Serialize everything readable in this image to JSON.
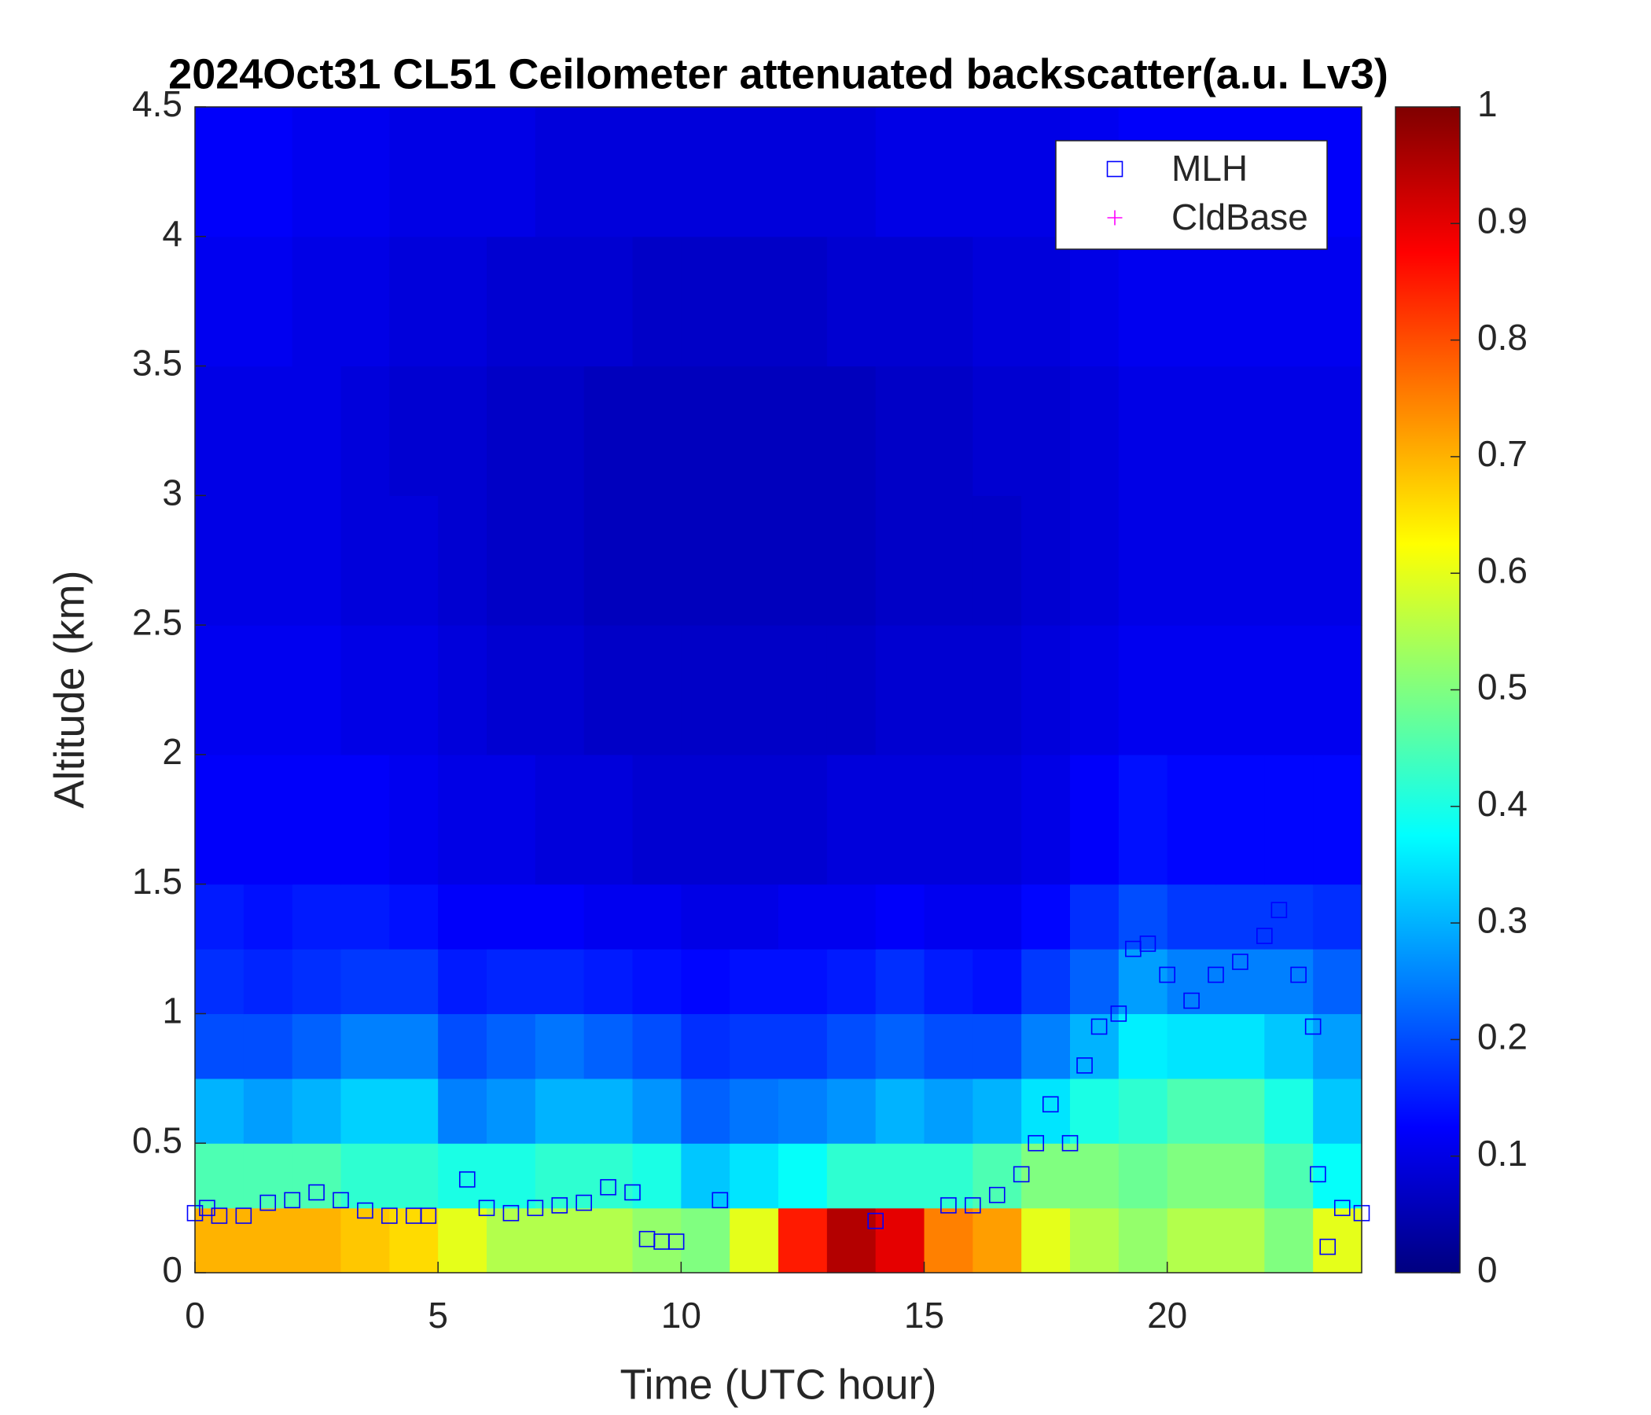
{
  "chart_data": {
    "type": "heatmap",
    "title": "2024Oct31 CL51 Ceilometer attenuated backscatter(a.u. Lv3)",
    "xlabel": "Time (UTC hour)",
    "ylabel": "Altitude (km)",
    "xlim": [
      0,
      24
    ],
    "xticks": [
      0,
      5,
      10,
      15,
      20
    ],
    "ylim": [
      0,
      4.5
    ],
    "yticks": [
      0,
      0.5,
      1,
      1.5,
      2,
      2.5,
      3,
      3.5,
      4,
      4.5
    ],
    "colormap": "jet",
    "clim": [
      0,
      1
    ],
    "cticks": [
      0,
      0.1,
      0.2,
      0.3,
      0.4,
      0.5,
      0.6,
      0.7,
      0.8,
      0.9,
      1
    ],
    "x_edges": [
      0,
      1,
      2,
      3,
      4,
      5,
      6,
      7,
      8,
      9,
      10,
      11,
      12,
      13,
      14,
      15,
      16,
      17,
      18,
      19,
      20,
      21,
      22,
      23,
      24
    ],
    "y_edges": [
      0,
      0.25,
      0.5,
      0.75,
      1,
      1.25,
      1.5,
      2,
      2.5,
      3,
      3.5,
      4,
      4.5
    ],
    "z": [
      [
        0.7,
        0.7,
        0.7,
        0.68,
        0.66,
        0.6,
        0.55,
        0.55,
        0.55,
        0.52,
        0.5,
        0.6,
        0.85,
        0.95,
        0.9,
        0.75,
        0.72,
        0.6,
        0.55,
        0.52,
        0.55,
        0.55,
        0.5,
        0.6
      ],
      [
        0.45,
        0.45,
        0.45,
        0.42,
        0.42,
        0.4,
        0.4,
        0.42,
        0.42,
        0.4,
        0.32,
        0.35,
        0.38,
        0.42,
        0.42,
        0.42,
        0.45,
        0.5,
        0.5,
        0.48,
        0.5,
        0.5,
        0.45,
        0.38
      ],
      [
        0.3,
        0.28,
        0.3,
        0.33,
        0.33,
        0.25,
        0.27,
        0.3,
        0.3,
        0.27,
        0.22,
        0.24,
        0.25,
        0.27,
        0.3,
        0.28,
        0.3,
        0.35,
        0.4,
        0.42,
        0.45,
        0.45,
        0.4,
        0.32
      ],
      [
        0.2,
        0.2,
        0.22,
        0.25,
        0.25,
        0.2,
        0.22,
        0.24,
        0.22,
        0.2,
        0.17,
        0.18,
        0.18,
        0.2,
        0.22,
        0.2,
        0.2,
        0.25,
        0.3,
        0.36,
        0.35,
        0.35,
        0.32,
        0.28
      ],
      [
        0.17,
        0.16,
        0.17,
        0.18,
        0.18,
        0.15,
        0.16,
        0.16,
        0.15,
        0.14,
        0.13,
        0.14,
        0.14,
        0.15,
        0.17,
        0.15,
        0.14,
        0.18,
        0.22,
        0.28,
        0.25,
        0.25,
        0.25,
        0.22
      ],
      [
        0.15,
        0.14,
        0.15,
        0.15,
        0.14,
        0.12,
        0.12,
        0.12,
        0.11,
        0.11,
        0.1,
        0.1,
        0.11,
        0.11,
        0.12,
        0.11,
        0.11,
        0.13,
        0.17,
        0.2,
        0.18,
        0.18,
        0.18,
        0.17
      ],
      [
        0.12,
        0.12,
        0.12,
        0.12,
        0.11,
        0.1,
        0.1,
        0.09,
        0.09,
        0.08,
        0.08,
        0.08,
        0.08,
        0.09,
        0.09,
        0.09,
        0.09,
        0.1,
        0.12,
        0.14,
        0.13,
        0.13,
        0.13,
        0.13
      ],
      [
        0.11,
        0.11,
        0.11,
        0.1,
        0.1,
        0.09,
        0.08,
        0.08,
        0.07,
        0.07,
        0.07,
        0.07,
        0.07,
        0.07,
        0.08,
        0.08,
        0.08,
        0.09,
        0.1,
        0.11,
        0.11,
        0.11,
        0.11,
        0.11
      ],
      [
        0.1,
        0.1,
        0.1,
        0.09,
        0.09,
        0.08,
        0.07,
        0.07,
        0.06,
        0.06,
        0.06,
        0.06,
        0.06,
        0.06,
        0.07,
        0.07,
        0.07,
        0.08,
        0.09,
        0.1,
        0.1,
        0.1,
        0.1,
        0.1
      ],
      [
        0.1,
        0.1,
        0.1,
        0.09,
        0.08,
        0.08,
        0.07,
        0.07,
        0.06,
        0.06,
        0.06,
        0.06,
        0.06,
        0.06,
        0.07,
        0.07,
        0.08,
        0.08,
        0.09,
        0.1,
        0.1,
        0.1,
        0.1,
        0.1
      ],
      [
        0.11,
        0.11,
        0.1,
        0.1,
        0.09,
        0.09,
        0.08,
        0.08,
        0.08,
        0.07,
        0.07,
        0.07,
        0.07,
        0.08,
        0.08,
        0.08,
        0.09,
        0.09,
        0.1,
        0.11,
        0.11,
        0.11,
        0.11,
        0.11
      ],
      [
        0.12,
        0.12,
        0.11,
        0.11,
        0.1,
        0.1,
        0.1,
        0.09,
        0.09,
        0.09,
        0.09,
        0.09,
        0.09,
        0.09,
        0.1,
        0.1,
        0.1,
        0.1,
        0.11,
        0.12,
        0.12,
        0.12,
        0.12,
        0.12
      ]
    ],
    "series": [
      {
        "name": "MLH",
        "color": "#0000ff",
        "marker": "square",
        "x": [
          0,
          0.25,
          0.5,
          1,
          1.5,
          2,
          2.5,
          3,
          3.5,
          4,
          4.5,
          4.8,
          5.6,
          6,
          6.5,
          7,
          7.5,
          8,
          8.5,
          9,
          9.3,
          9.6,
          9.9,
          10.8,
          14,
          15.5,
          16,
          16.5,
          17,
          17.3,
          17.6,
          18,
          18.3,
          18.6,
          19,
          19.3,
          19.6,
          20,
          20.5,
          21,
          21.5,
          22,
          22.3,
          22.7,
          23,
          23.1,
          23.3,
          23.6,
          24
        ],
        "values": [
          0.23,
          0.25,
          0.22,
          0.22,
          0.27,
          0.28,
          0.31,
          0.28,
          0.24,
          0.22,
          0.22,
          0.22,
          0.36,
          0.25,
          0.23,
          0.25,
          0.26,
          0.27,
          0.33,
          0.31,
          0.13,
          0.12,
          0.12,
          0.28,
          0.2,
          0.26,
          0.26,
          0.3,
          0.38,
          0.5,
          0.65,
          0.5,
          0.8,
          0.95,
          1,
          1.25,
          1.27,
          1.15,
          1.05,
          1.15,
          1.2,
          1.3,
          1.4,
          1.15,
          0.95,
          0.38,
          0.1,
          0.25,
          0.23
        ]
      },
      {
        "name": "CldBase",
        "color": "#ff00ff",
        "marker": "plus",
        "x": [],
        "values": []
      }
    ],
    "legend": "upper right"
  }
}
